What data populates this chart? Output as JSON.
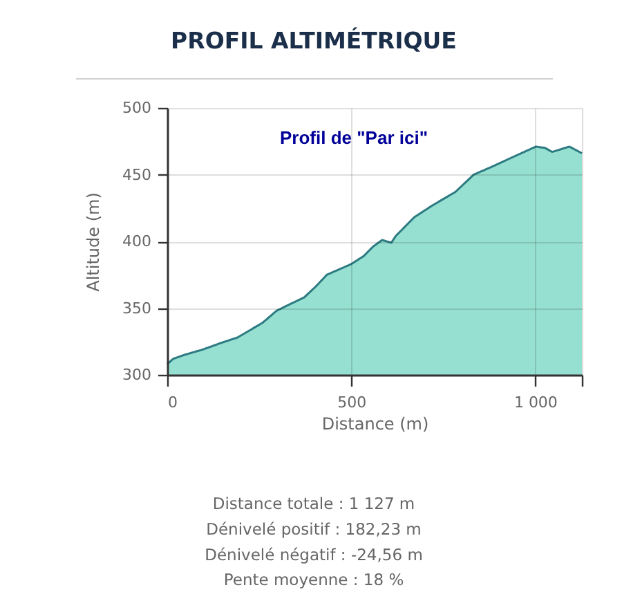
{
  "chart_data": {
    "type": "area",
    "title": "PROFIL ALTIMÉTRIQUE",
    "subtitle": "Profil de \"Par ici\"",
    "xlabel": "Distance (m)",
    "ylabel": "Altitude (m)",
    "x": [
      0,
      16,
      47,
      97,
      147,
      191,
      222,
      259,
      297,
      334,
      372,
      403,
      434,
      459,
      500,
      534,
      559,
      584,
      609,
      621,
      671,
      721,
      783,
      833,
      883,
      946,
      1002,
      1027,
      1046,
      1093,
      1127
    ],
    "series": [
      {
        "color": "#96e0d2",
        "values": [
          308,
          312,
          315,
          319,
          324,
          328,
          333,
          339,
          348,
          353,
          358,
          366,
          375,
          378,
          383,
          389,
          396,
          401,
          399,
          404,
          418,
          427,
          437,
          450,
          456,
          464,
          471,
          470,
          467,
          471,
          466
        ]
      }
    ],
    "xlim": [
      0,
      1127
    ],
    "xticks": [
      0,
      500,
      {
        "value": 1000,
        "label": "1 000"
      },
      {
        "value": 1127,
        "label": null
      }
    ],
    "ylim": [
      300,
      500
    ],
    "yticks": [
      300,
      350,
      400,
      450,
      500
    ],
    "grid": true,
    "line_style": "solid",
    "annotations": [
      "Distance totale : 1 127 m",
      "Dénivelé positif : 182,23 m",
      "Dénivelé négatif : -24,56 m",
      "Pente moyenne : 18 %"
    ]
  }
}
